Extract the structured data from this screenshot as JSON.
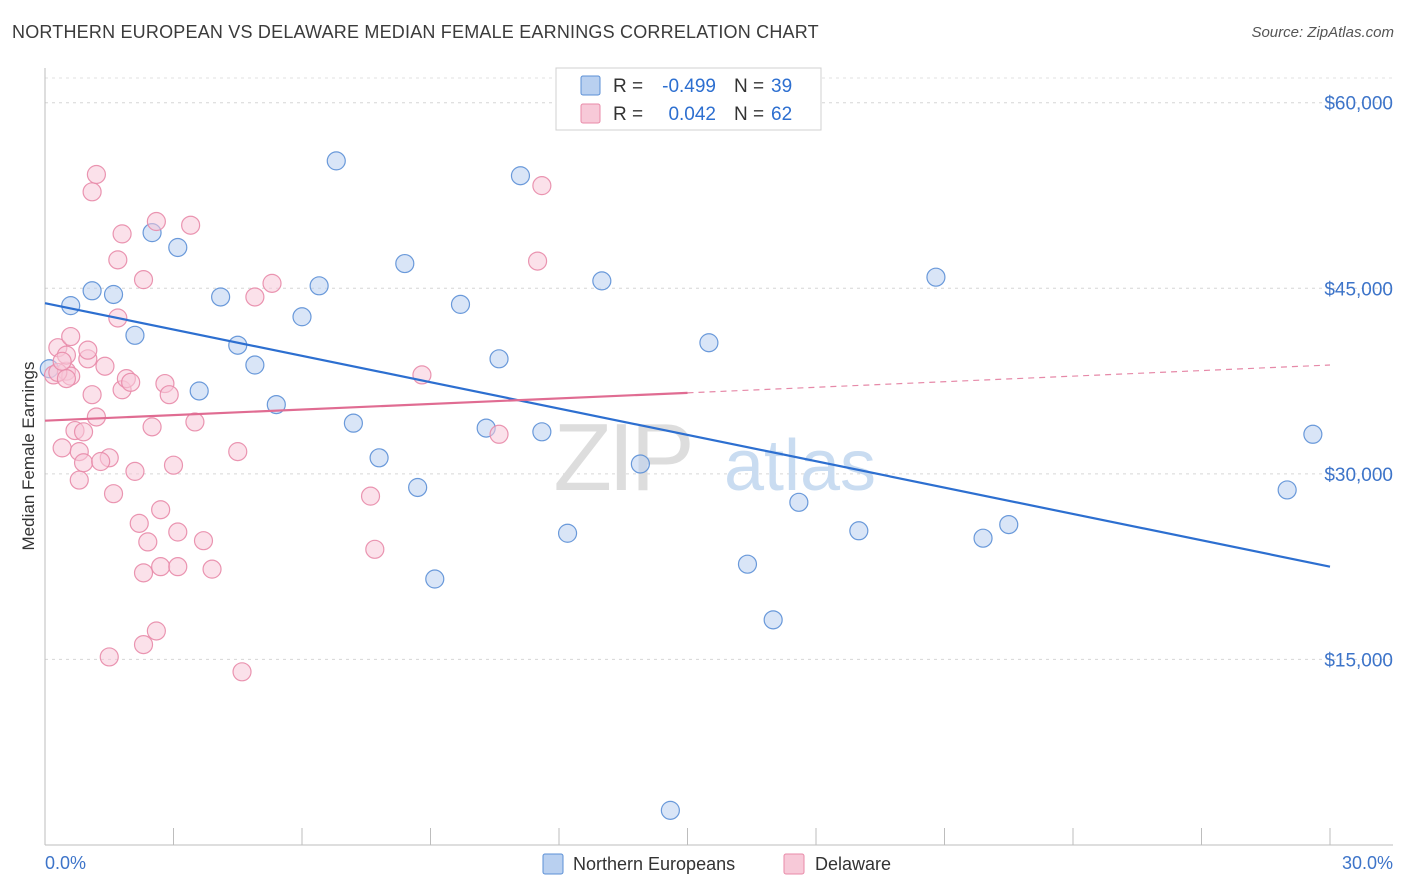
{
  "chart_data": {
    "type": "scatter",
    "title": "NORTHERN EUROPEAN VS DELAWARE MEDIAN FEMALE EARNINGS CORRELATION CHART",
    "source": "Source: ZipAtlas.com",
    "xlabel": "",
    "ylabel": "Median Female Earnings",
    "xlim": [
      0,
      30
    ],
    "ylim": [
      0,
      62000
    ],
    "x_tick_labels": [
      "0.0%",
      "30.0%"
    ],
    "y_ticks": [
      15000,
      30000,
      45000,
      60000
    ],
    "y_tick_labels": [
      "$15,000",
      "$30,000",
      "$45,000",
      "$60,000"
    ],
    "watermark": {
      "zip": "ZIP",
      "atlas": "atlas"
    },
    "legend_stats": [
      {
        "r_label": "R =",
        "r_value": "-0.499",
        "n_label": "N =",
        "n_value": "39"
      },
      {
        "r_label": "R =",
        "r_value": "0.042",
        "n_label": "N =",
        "n_value": "62"
      }
    ],
    "series": [
      {
        "name": "Northern Europeans",
        "color": "#5b8fd6",
        "fill": "#b9d0f0",
        "line_color": "#2d6fd0",
        "trend": {
          "x0": 0,
          "y0": 43800,
          "x1": 30,
          "y1": 22500,
          "solid_until": 30
        },
        "points": [
          [
            0.1,
            38500
          ],
          [
            0.6,
            43600
          ],
          [
            1.1,
            44800
          ],
          [
            1.6,
            44500
          ],
          [
            2.1,
            41200
          ],
          [
            2.5,
            49500
          ],
          [
            3.1,
            48300
          ],
          [
            3.6,
            36700
          ],
          [
            4.1,
            44300
          ],
          [
            4.5,
            40400
          ],
          [
            4.9,
            38800
          ],
          [
            5.4,
            35600
          ],
          [
            6.0,
            42700
          ],
          [
            6.4,
            45200
          ],
          [
            6.8,
            55300
          ],
          [
            7.2,
            34100
          ],
          [
            7.8,
            31300
          ],
          [
            8.4,
            47000
          ],
          [
            8.7,
            28900
          ],
          [
            9.1,
            21500
          ],
          [
            9.7,
            43700
          ],
          [
            10.3,
            33700
          ],
          [
            10.6,
            39300
          ],
          [
            11.1,
            54100
          ],
          [
            11.6,
            33400
          ],
          [
            12.2,
            25200
          ],
          [
            13.0,
            45600
          ],
          [
            13.9,
            30800
          ],
          [
            14.6,
            2800
          ],
          [
            15.5,
            40600
          ],
          [
            16.4,
            22700
          ],
          [
            17.0,
            18200
          ],
          [
            17.6,
            27700
          ],
          [
            19.0,
            25400
          ],
          [
            20.8,
            45900
          ],
          [
            21.9,
            24800
          ],
          [
            22.5,
            25900
          ],
          [
            29.0,
            28700
          ],
          [
            29.6,
            33200
          ]
        ]
      },
      {
        "name": "Delaware",
        "color": "#e88aa8",
        "fill": "#f7c9d8",
        "line_color": "#e06c92",
        "trend": {
          "x0": 0,
          "y0": 34300,
          "x1": 30,
          "y1": 38800,
          "solid_until": 15
        },
        "points": [
          [
            0.2,
            38000
          ],
          [
            0.3,
            40200
          ],
          [
            0.4,
            32100
          ],
          [
            0.5,
            38300
          ],
          [
            0.5,
            39600
          ],
          [
            0.6,
            41100
          ],
          [
            0.6,
            37900
          ],
          [
            0.7,
            33500
          ],
          [
            0.8,
            29500
          ],
          [
            0.8,
            31800
          ],
          [
            0.9,
            30900
          ],
          [
            1.0,
            39300
          ],
          [
            1.1,
            36400
          ],
          [
            1.1,
            52800
          ],
          [
            1.2,
            54200
          ],
          [
            1.2,
            34600
          ],
          [
            1.4,
            38700
          ],
          [
            1.5,
            15200
          ],
          [
            1.5,
            31300
          ],
          [
            1.6,
            28400
          ],
          [
            1.7,
            42600
          ],
          [
            1.7,
            47300
          ],
          [
            1.8,
            36800
          ],
          [
            1.8,
            49400
          ],
          [
            1.9,
            37700
          ],
          [
            2.1,
            30200
          ],
          [
            2.2,
            26000
          ],
          [
            2.3,
            45700
          ],
          [
            2.3,
            16200
          ],
          [
            2.3,
            22000
          ],
          [
            2.4,
            24500
          ],
          [
            2.5,
            33800
          ],
          [
            2.6,
            17300
          ],
          [
            2.6,
            50400
          ],
          [
            2.7,
            27100
          ],
          [
            2.7,
            22500
          ],
          [
            2.8,
            37300
          ],
          [
            2.9,
            36400
          ],
          [
            3.0,
            30700
          ],
          [
            3.1,
            25300
          ],
          [
            3.1,
            22500
          ],
          [
            3.4,
            50100
          ],
          [
            3.5,
            34200
          ],
          [
            3.7,
            24600
          ],
          [
            3.9,
            22300
          ],
          [
            4.5,
            31800
          ],
          [
            4.6,
            14000
          ],
          [
            4.9,
            44300
          ],
          [
            5.3,
            45400
          ],
          [
            7.6,
            28200
          ],
          [
            7.7,
            23900
          ],
          [
            8.8,
            38000
          ],
          [
            10.6,
            33200
          ],
          [
            11.5,
            47200
          ],
          [
            11.6,
            53300
          ],
          [
            0.3,
            38200
          ],
          [
            0.4,
            39100
          ],
          [
            0.9,
            33400
          ],
          [
            0.5,
            37700
          ],
          [
            1.3,
            31000
          ],
          [
            2.0,
            37400
          ],
          [
            1.0,
            40000
          ]
        ]
      }
    ]
  }
}
